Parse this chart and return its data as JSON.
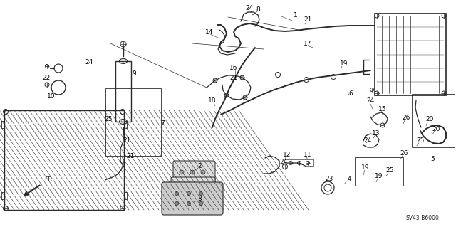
{
  "diagram_code": "SV43-B6000",
  "background_color": "#ffffff",
  "line_color": "#2a2a2a",
  "label_color": "#000000",
  "fig_width": 6.4,
  "fig_height": 3.19,
  "dpi": 100
}
